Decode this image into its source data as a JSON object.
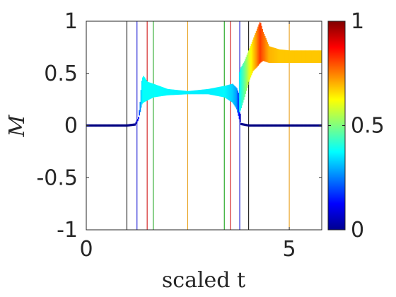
{
  "chart_data": {
    "type": "line",
    "xlabel": "scaled t",
    "ylabel": "M",
    "xlim": [
      0,
      5.8
    ],
    "ylim": [
      -1,
      1
    ],
    "x_ticks": [
      0,
      5
    ],
    "x_tick_labels": [
      "0",
      "5"
    ],
    "y_ticks": [
      -1,
      -0.5,
      0,
      0.5,
      1
    ],
    "y_tick_labels": [
      "-1",
      "-0.5",
      "0",
      "0.5",
      "1"
    ],
    "grid": false,
    "colormap": "jet",
    "colorbar": {
      "range": [
        0,
        1
      ],
      "ticks": [
        0,
        0.5,
        1
      ],
      "tick_labels": [
        "0",
        "0.5",
        "1"
      ]
    },
    "vertical_lines": [
      {
        "x": 1.0,
        "color": "#000000"
      },
      {
        "x": 1.25,
        "color": "#0000cc"
      },
      {
        "x": 1.5,
        "color": "#cc0000"
      },
      {
        "x": 1.65,
        "color": "#009900"
      },
      {
        "x": 2.5,
        "color": "#e69500"
      },
      {
        "x": 3.4,
        "color": "#009900"
      },
      {
        "x": 3.55,
        "color": "#cc0000"
      },
      {
        "x": 3.78,
        "color": "#0000cc"
      },
      {
        "x": 4.0,
        "color": "#000000"
      },
      {
        "x": 5.0,
        "color": "#e69500"
      }
    ],
    "series": [
      {
        "x": [
          0,
          0.6,
          1.0,
          1.2,
          1.28,
          1.32,
          1.36,
          1.4,
          1.5,
          1.65,
          2.0,
          2.5,
          3.0,
          3.4,
          3.6,
          3.7,
          3.76,
          3.8,
          4.0,
          4.5,
          5.0,
          5.5,
          5.8
        ],
        "y_low": [
          0,
          0,
          0,
          0.01,
          0.06,
          0.12,
          0.2,
          0.22,
          0.24,
          0.27,
          0.29,
          0.3,
          0.3,
          0.27,
          0.22,
          0.16,
          0.07,
          0.01,
          0,
          0,
          0,
          0,
          0
        ],
        "y_high": [
          0,
          0,
          0,
          0.01,
          0.07,
          0.2,
          0.42,
          0.48,
          0.42,
          0.4,
          0.35,
          0.33,
          0.35,
          0.38,
          0.4,
          0.36,
          0.3,
          0.02,
          0,
          0,
          0,
          0,
          0
        ],
        "color_values": [
          0,
          0,
          0,
          0.02,
          0.12,
          0.25,
          0.35,
          0.38,
          0.38,
          0.38,
          0.37,
          0.36,
          0.36,
          0.37,
          0.33,
          0.28,
          0.15,
          0.02,
          0,
          0,
          0,
          0,
          0
        ]
      },
      {
        "x": [
          3.76,
          3.8,
          3.9,
          4.0,
          4.1,
          4.2,
          4.28,
          4.35,
          4.5,
          4.75,
          5.0,
          5.5,
          5.8
        ],
        "y_low": [
          0.12,
          0.15,
          0.28,
          0.42,
          0.52,
          0.56,
          0.6,
          0.62,
          0.6,
          0.6,
          0.6,
          0.6,
          0.6
        ],
        "y_high": [
          0.5,
          0.55,
          0.62,
          0.72,
          0.82,
          0.92,
          1.0,
          0.9,
          0.76,
          0.73,
          0.72,
          0.72,
          0.72
        ],
        "color_values": [
          0.32,
          0.4,
          0.48,
          0.58,
          0.66,
          0.74,
          0.82,
          0.78,
          0.7,
          0.68,
          0.68,
          0.68,
          0.68
        ]
      }
    ]
  }
}
